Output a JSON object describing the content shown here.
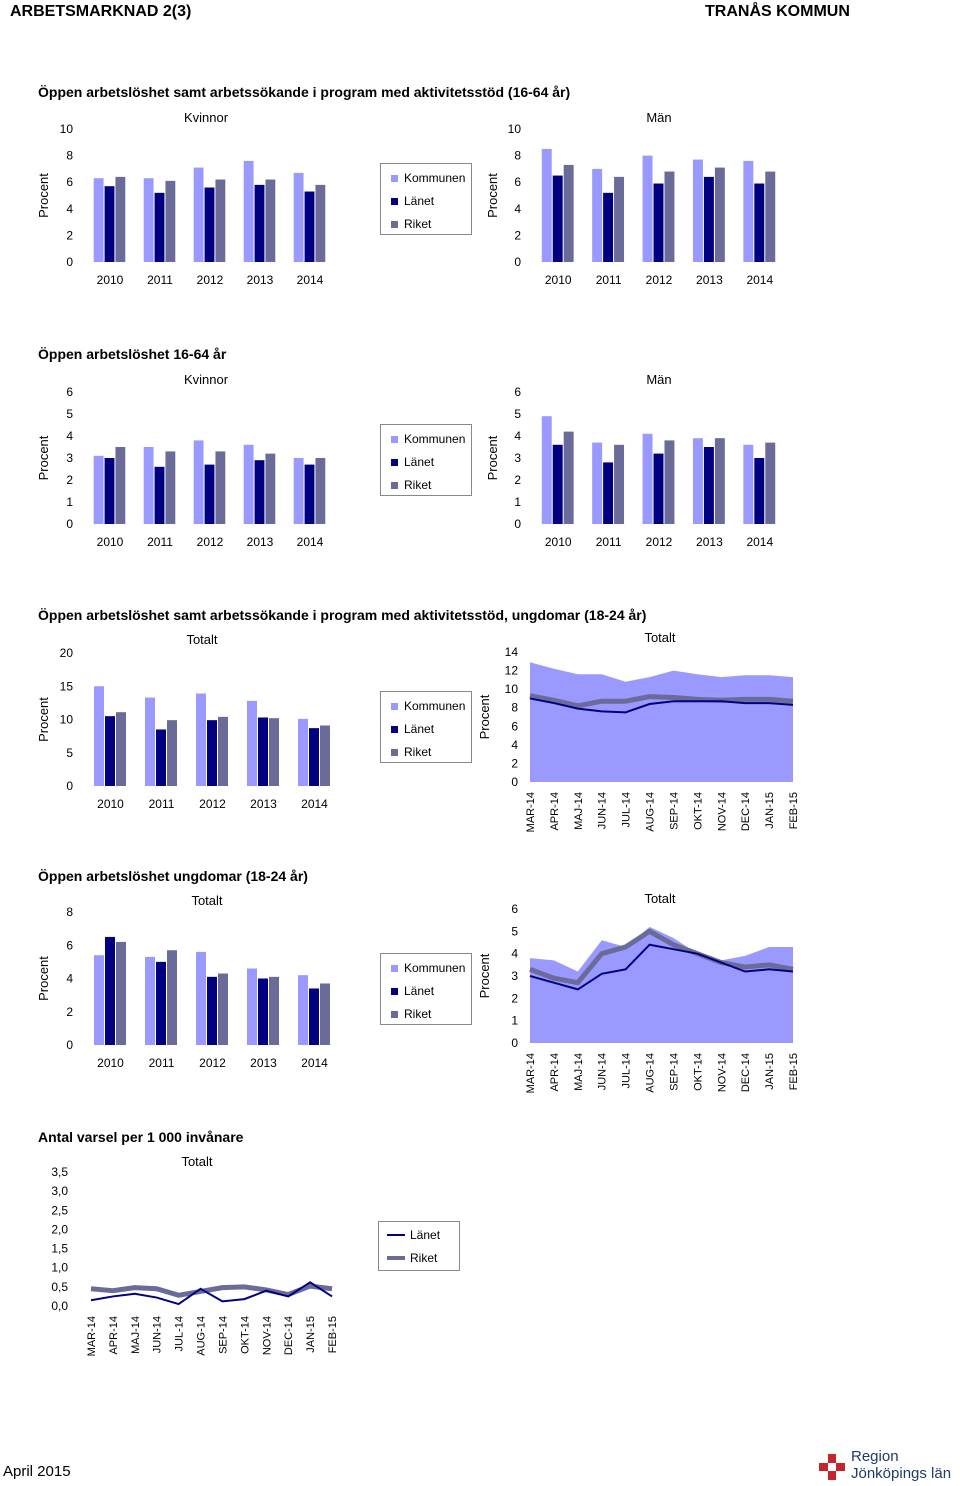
{
  "header": {
    "left": "ARBETSMARKNAD 2(3)",
    "right": "TRANÅS KOMMUN"
  },
  "colors": {
    "kommun": "#9999ff",
    "lan": "#000080",
    "riket": "#6b6b99",
    "area": "#9999ff"
  },
  "legend": {
    "kommunen": "Kommunen",
    "lanet": "Länet",
    "riket": "Riket"
  },
  "sections": {
    "s1": "Öppen arbetslöshet samt arbetssökande i program med aktivitetsstöd (16-64 år)",
    "s2": "Öppen arbetslöshet 16-64 år",
    "s3": "Öppen arbetslöshet samt arbetssökande i program med aktivitetsstöd, ungdomar (18-24 år)",
    "s4": "Öppen arbetslöshet ungdomar (18-24 år)",
    "s5": "Antal varsel per 1 000 invånare"
  },
  "footer": {
    "date": "April 2015",
    "logo_line1": "Region",
    "logo_line2": "Jönköpings län"
  },
  "chart_data": [
    {
      "id": "c1",
      "type": "bar",
      "title": "Kvinnor",
      "ylabel": "Procent",
      "ylim": [
        0,
        10
      ],
      "yticks": [
        "0",
        "2",
        "4",
        "6",
        "8",
        "10"
      ],
      "categories": [
        "2010",
        "2011",
        "2012",
        "2013",
        "2014"
      ],
      "series": [
        {
          "name": "Kommunen",
          "values": [
            6.3,
            6.3,
            7.1,
            7.6,
            6.7
          ]
        },
        {
          "name": "Länet",
          "values": [
            5.7,
            5.2,
            5.6,
            5.8,
            5.3
          ]
        },
        {
          "name": "Riket",
          "values": [
            6.4,
            6.1,
            6.2,
            6.2,
            5.8
          ]
        }
      ]
    },
    {
      "id": "c2",
      "type": "bar",
      "title": "Män",
      "ylabel": "Procent",
      "ylim": [
        0,
        10
      ],
      "yticks": [
        "0",
        "2",
        "4",
        "6",
        "8",
        "10"
      ],
      "categories": [
        "2010",
        "2011",
        "2012",
        "2013",
        "2014"
      ],
      "series": [
        {
          "name": "Kommunen",
          "values": [
            8.5,
            7.0,
            8.0,
            7.7,
            7.6
          ]
        },
        {
          "name": "Länet",
          "values": [
            6.5,
            5.2,
            5.9,
            6.4,
            5.9
          ]
        },
        {
          "name": "Riket",
          "values": [
            7.3,
            6.4,
            6.8,
            7.1,
            6.8
          ]
        }
      ]
    },
    {
      "id": "c3",
      "type": "bar",
      "title": "Kvinnor",
      "ylabel": "Procent",
      "ylim": [
        0,
        6
      ],
      "yticks": [
        "0",
        "1",
        "2",
        "3",
        "4",
        "5",
        "6"
      ],
      "categories": [
        "2010",
        "2011",
        "2012",
        "2013",
        "2014"
      ],
      "series": [
        {
          "name": "Kommunen",
          "values": [
            3.1,
            3.5,
            3.8,
            3.6,
            3.0
          ]
        },
        {
          "name": "Länet",
          "values": [
            3.0,
            2.6,
            2.7,
            2.9,
            2.7
          ]
        },
        {
          "name": "Riket",
          "values": [
            3.5,
            3.3,
            3.3,
            3.2,
            3.0
          ]
        }
      ]
    },
    {
      "id": "c4",
      "type": "bar",
      "title": "Män",
      "ylabel": "Procent",
      "ylim": [
        0,
        6
      ],
      "yticks": [
        "0",
        "1",
        "2",
        "3",
        "4",
        "5",
        "6"
      ],
      "categories": [
        "2010",
        "2011",
        "2012",
        "2013",
        "2014"
      ],
      "series": [
        {
          "name": "Kommunen",
          "values": [
            4.9,
            3.7,
            4.1,
            3.9,
            3.6
          ]
        },
        {
          "name": "Länet",
          "values": [
            3.6,
            2.8,
            3.2,
            3.5,
            3.0
          ]
        },
        {
          "name": "Riket",
          "values": [
            4.2,
            3.6,
            3.8,
            3.9,
            3.7
          ]
        }
      ]
    },
    {
      "id": "c5",
      "type": "bar",
      "title": "Totalt",
      "ylabel": "Procent",
      "ylim": [
        0,
        20
      ],
      "yticks": [
        "0",
        "5",
        "10",
        "15",
        "20"
      ],
      "categories": [
        "2010",
        "2011",
        "2012",
        "2013",
        "2014"
      ],
      "series": [
        {
          "name": "Kommunen",
          "values": [
            15.0,
            13.3,
            13.9,
            12.8,
            10.1
          ]
        },
        {
          "name": "Länet",
          "values": [
            10.5,
            8.5,
            9.9,
            10.3,
            8.7
          ]
        },
        {
          "name": "Riket",
          "values": [
            11.1,
            9.9,
            10.4,
            10.2,
            9.1
          ]
        }
      ]
    },
    {
      "id": "c6",
      "type": "area",
      "title": "Totalt",
      "ylabel": "Procent",
      "ylim": [
        0,
        14
      ],
      "yticks": [
        "0",
        "2",
        "4",
        "6",
        "8",
        "10",
        "12",
        "14"
      ],
      "categories": [
        "MAR-14",
        "APR-14",
        "MAJ-14",
        "JUN-14",
        "JUL-14",
        "AUG-14",
        "SEP-14",
        "OKT-14",
        "NOV-14",
        "DEC-14",
        "JAN-15",
        "FEB-15"
      ],
      "series": [
        {
          "name": "Kommunen",
          "values": [
            12.9,
            12.2,
            11.6,
            11.6,
            10.8,
            11.3,
            12.0,
            11.6,
            11.3,
            11.5,
            11.5,
            11.3
          ]
        },
        {
          "name": "Länet",
          "values": [
            9.0,
            8.5,
            7.9,
            7.6,
            7.5,
            8.4,
            8.7,
            8.7,
            8.7,
            8.5,
            8.5,
            8.3
          ]
        },
        {
          "name": "Riket",
          "values": [
            9.3,
            8.8,
            8.2,
            8.7,
            8.7,
            9.2,
            9.1,
            8.9,
            8.8,
            8.9,
            8.9,
            8.7
          ]
        }
      ]
    },
    {
      "id": "c7",
      "type": "bar",
      "title": "Totalt",
      "ylabel": "Procent",
      "ylim": [
        0,
        8
      ],
      "yticks": [
        "0",
        "2",
        "4",
        "6",
        "8"
      ],
      "categories": [
        "2010",
        "2011",
        "2012",
        "2013",
        "2014"
      ],
      "series": [
        {
          "name": "Kommunen",
          "values": [
            5.4,
            5.3,
            5.6,
            4.6,
            4.2
          ]
        },
        {
          "name": "Länet",
          "values": [
            6.5,
            5.0,
            4.1,
            4.0,
            3.4
          ]
        },
        {
          "name": "Riket",
          "values": [
            6.2,
            5.7,
            4.3,
            4.1,
            3.7
          ]
        }
      ]
    },
    {
      "id": "c8",
      "type": "area",
      "title": "Totalt",
      "ylabel": "Procent",
      "ylim": [
        0,
        6
      ],
      "yticks": [
        "0",
        "1",
        "2",
        "3",
        "4",
        "5",
        "6"
      ],
      "categories": [
        "MAR-14",
        "APR-14",
        "MAJ-14",
        "JUN-14",
        "JUL-14",
        "AUG-14",
        "SEP-14",
        "OKT-14",
        "NOV-14",
        "DEC-14",
        "JAN-15",
        "FEB-15"
      ],
      "series": [
        {
          "name": "Kommunen",
          "values": [
            3.8,
            3.7,
            3.2,
            4.6,
            4.3,
            5.2,
            4.7,
            4.0,
            3.7,
            3.9,
            4.3,
            4.3
          ]
        },
        {
          "name": "Länet",
          "values": [
            3.0,
            2.7,
            2.4,
            3.1,
            3.3,
            4.4,
            4.2,
            4.0,
            3.6,
            3.2,
            3.3,
            3.2
          ]
        },
        {
          "name": "Riket",
          "values": [
            3.3,
            2.9,
            2.7,
            4.0,
            4.3,
            5.0,
            4.4,
            4.0,
            3.6,
            3.4,
            3.5,
            3.3
          ]
        }
      ]
    },
    {
      "id": "c9",
      "type": "line",
      "title": "Totalt",
      "ylim": [
        0,
        3.5
      ],
      "yticks": [
        "0,0",
        "0,5",
        "1,0",
        "1,5",
        "2,0",
        "2,5",
        "3,0",
        "3,5"
      ],
      "categories": [
        "MAR-14",
        "APR-14",
        "MAJ-14",
        "JUN-14",
        "JUL-14",
        "AUG-14",
        "SEP-14",
        "OKT-14",
        "NOV-14",
        "DEC-14",
        "JAN-15",
        "FEB-15"
      ],
      "series": [
        {
          "name": "Länet",
          "values": [
            0.15,
            0.25,
            0.32,
            0.22,
            0.05,
            0.45,
            0.12,
            0.18,
            0.4,
            0.25,
            0.62,
            0.25
          ]
        },
        {
          "name": "Riket",
          "values": [
            0.45,
            0.4,
            0.48,
            0.45,
            0.28,
            0.38,
            0.48,
            0.5,
            0.42,
            0.3,
            0.52,
            0.45
          ]
        }
      ]
    }
  ]
}
